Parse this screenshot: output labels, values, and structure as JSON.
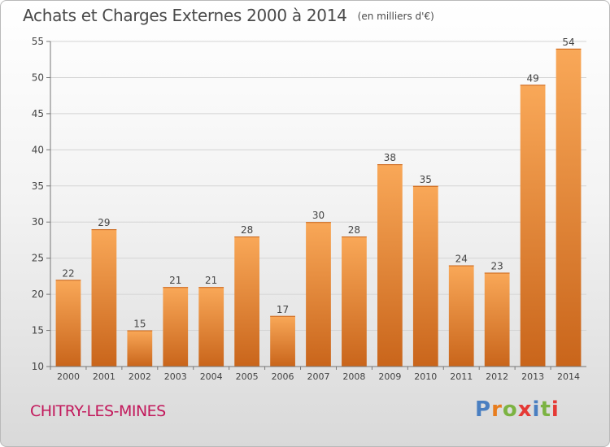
{
  "title": "Achats et Charges Externes 2000 à 2014",
  "unit": "(en milliers d'€)",
  "commune": "CHITRY-LES-MINES",
  "logo": {
    "text": "Proxiti",
    "colors": [
      "#4a7fc1",
      "#e87d1e",
      "#7cb342",
      "#e53935",
      "#4a7fc1",
      "#7cb342",
      "#e53935"
    ]
  },
  "colors": {
    "bar_light": "#f9a858",
    "bar_dark": "#c9651b",
    "commune": "#c2185b"
  },
  "chart_data": {
    "type": "bar",
    "categories": [
      "2000",
      "2001",
      "2002",
      "2003",
      "2004",
      "2005",
      "2006",
      "2007",
      "2008",
      "2009",
      "2010",
      "2011",
      "2012",
      "2013",
      "2014"
    ],
    "values": [
      22,
      29,
      15,
      21,
      21,
      28,
      17,
      30,
      28,
      38,
      35,
      24,
      23,
      49,
      54
    ],
    "title": "Achats et Charges Externes 2000 à 2014",
    "xlabel": "",
    "ylabel": "",
    "ylim": [
      10,
      55
    ],
    "yticks": [
      10,
      15,
      20,
      25,
      30,
      35,
      40,
      45,
      50,
      55
    ],
    "grid": true,
    "data_labels": true
  }
}
